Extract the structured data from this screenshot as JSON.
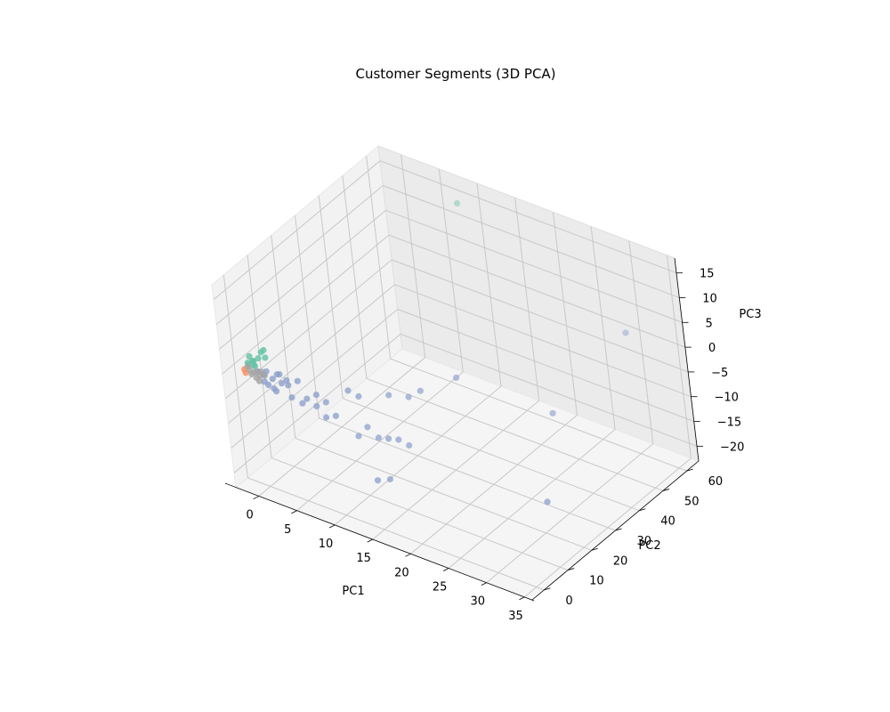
{
  "chart_data": {
    "type": "scatter",
    "projection": "3d",
    "title": "Customer Segments (3D PCA)",
    "xlabel": "PC1",
    "ylabel": "PC2",
    "zlabel": "PC3",
    "xlim": [
      -3,
      36
    ],
    "ylim": [
      -5,
      65
    ],
    "zlim": [
      -23,
      18
    ],
    "xticks": [
      0,
      5,
      10,
      15,
      20,
      25,
      30,
      35
    ],
    "yticks": [
      0,
      10,
      20,
      30,
      40,
      50,
      60
    ],
    "zticks": [
      -20,
      -15,
      -10,
      -5,
      0,
      5,
      10,
      15
    ],
    "grid": true,
    "legend": "none",
    "series": [
      {
        "color": "#66c2a5",
        "points": [
          [
            -1.0,
            0.5,
            2.5
          ],
          [
            -0.8,
            1.0,
            1.5
          ],
          [
            -0.5,
            0.5,
            1.8
          ],
          [
            -1.2,
            0.2,
            1.2
          ],
          [
            0.5,
            1.0,
            4.0
          ],
          [
            0.8,
            1.2,
            4.5
          ],
          [
            1.0,
            1.0,
            3.2
          ],
          [
            0.2,
            0.5,
            2.8
          ],
          [
            -0.6,
            0.8,
            0.8
          ],
          [
            -0.3,
            0.3,
            1.0
          ],
          [
            -1.3,
            0.6,
            0.6
          ],
          [
            8.0,
            62.0,
            14.0
          ]
        ]
      },
      {
        "color": "#fc8d62",
        "points": [
          [
            -1.8,
            0.3,
            -0.5
          ],
          [
            -1.6,
            0.1,
            -1.0
          ]
        ]
      },
      {
        "color": "#8da0cb",
        "points": [
          [
            0.0,
            0.5,
            0.0
          ],
          [
            0.5,
            1.0,
            -0.5
          ],
          [
            1.0,
            0.8,
            0.5
          ],
          [
            1.5,
            1.5,
            -1.0
          ],
          [
            2.0,
            2.0,
            0.0
          ],
          [
            0.8,
            0.3,
            -1.5
          ],
          [
            1.2,
            0.5,
            -2.0
          ],
          [
            2.5,
            2.0,
            -1.5
          ],
          [
            3.0,
            3.0,
            -2.0
          ],
          [
            4.0,
            4.0,
            -1.0
          ],
          [
            2.0,
            1.0,
            -3.0
          ],
          [
            3.5,
            2.5,
            -4.0
          ],
          [
            4.5,
            3.5,
            -5.0
          ],
          [
            5.0,
            4.0,
            -4.0
          ],
          [
            6.0,
            5.0,
            -3.0
          ],
          [
            5.5,
            6.0,
            -6.0
          ],
          [
            6.5,
            7.0,
            -5.0
          ],
          [
            7.0,
            5.0,
            -7.0
          ],
          [
            8.0,
            6.0,
            -6.5
          ],
          [
            9.0,
            9.0,
            -2.0
          ],
          [
            10.0,
            10.0,
            -3.0
          ],
          [
            10.0,
            12.0,
            -10.0
          ],
          [
            12.0,
            14.0,
            -12.0
          ],
          [
            13.0,
            15.0,
            -12.0
          ],
          [
            14.0,
            16.0,
            -13.0
          ],
          [
            11.0,
            13.0,
            -12.0
          ],
          [
            9.0,
            11.0,
            -12.0
          ],
          [
            12.0,
            8.0,
            -18.0
          ],
          [
            13.0,
            10.0,
            -18.0
          ],
          [
            15.0,
            20.0,
            -3.0
          ],
          [
            14.0,
            18.0,
            -4.0
          ],
          [
            12.0,
            16.0,
            -4.0
          ],
          [
            18.0,
            26.0,
            -1.0
          ],
          [
            30.0,
            28.0,
            -2.0
          ],
          [
            32.0,
            54.0,
            5.0
          ],
          [
            35.0,
            8.0,
            -9.0
          ],
          [
            1.8,
            0.8,
            -2.5
          ],
          [
            2.5,
            1.5,
            0.5
          ],
          [
            3.2,
            2.0,
            -0.5
          ],
          [
            0.3,
            1.5,
            -0.8
          ]
        ]
      },
      {
        "color": "#a5a5a5",
        "points": [
          [
            -1.0,
            0.0,
            0.0
          ],
          [
            -0.5,
            0.2,
            -0.3
          ],
          [
            0.0,
            0.0,
            0.2
          ],
          [
            0.3,
            0.1,
            -0.5
          ],
          [
            -0.8,
            0.1,
            -0.8
          ],
          [
            0.6,
            0.2,
            0.4
          ],
          [
            -0.2,
            0.1,
            -1.2
          ],
          [
            0.9,
            0.3,
            -0.2
          ],
          [
            -1.2,
            0.0,
            0.5
          ],
          [
            0.2,
            0.0,
            -1.6
          ]
        ]
      }
    ]
  }
}
